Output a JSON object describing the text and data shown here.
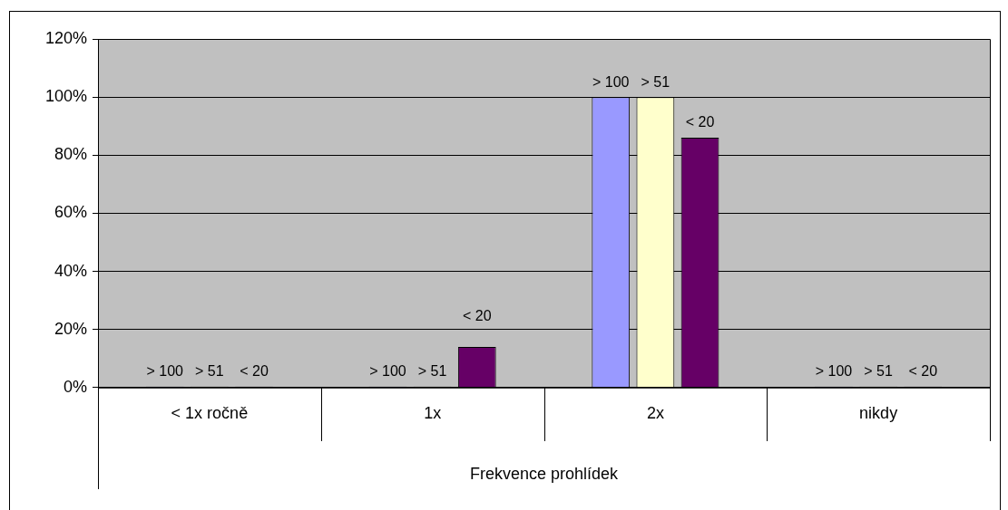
{
  "chart_data": {
    "type": "bar",
    "xlabel": "Frekvence prohlídek",
    "categories": [
      "< 1x ročně",
      "1x",
      "2x",
      "nikdy"
    ],
    "series": [
      {
        "color": "#9999ff",
        "values": [
          0,
          0,
          100,
          0
        ],
        "value_labels": [
          "> 100",
          "> 100",
          "> 100",
          "> 100"
        ]
      },
      {
        "color": "#ffffcc",
        "values": [
          0,
          0,
          100,
          0
        ],
        "value_labels": [
          "> 51",
          "> 51",
          "> 51",
          "> 51"
        ]
      },
      {
        "color": "#660066",
        "values": [
          0,
          14,
          86,
          0
        ],
        "value_labels": [
          "< 20",
          "< 20",
          "< 20",
          "< 20"
        ]
      }
    ],
    "ylim": [
      0,
      120
    ],
    "yticks": [
      {
        "value": 0,
        "label": "0%"
      },
      {
        "value": 20,
        "label": "20%"
      },
      {
        "value": 40,
        "label": "40%"
      },
      {
        "value": 60,
        "label": "60%"
      },
      {
        "value": 80,
        "label": "80%"
      },
      {
        "value": 100,
        "label": "100%"
      },
      {
        "value": 120,
        "label": "120%"
      }
    ],
    "grid": "y",
    "legend": false
  }
}
